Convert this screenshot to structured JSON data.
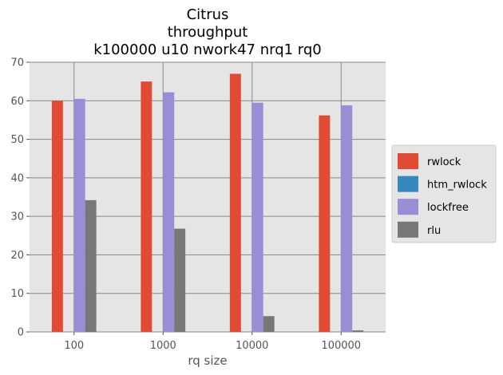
{
  "chart_data": {
    "type": "bar",
    "title_lines": [
      "Citrus",
      "throughput",
      "k100000 u10 nwork47 nrq1 rq0"
    ],
    "xlabel": "rq size",
    "ylabel": "",
    "categories": [
      "100",
      "1000",
      "10000",
      "100000"
    ],
    "ylim": [
      0,
      70
    ],
    "yticks": [
      "0",
      "10",
      "20",
      "30",
      "40",
      "50",
      "60",
      "70"
    ],
    "grid": true,
    "legend_position": "right",
    "series": [
      {
        "name": "rwlock",
        "color": "#E24A33",
        "values": [
          60,
          65,
          67,
          56.2
        ]
      },
      {
        "name": "htm_rwlock",
        "color": "#348ABD",
        "values": [
          0,
          0,
          0,
          0
        ]
      },
      {
        "name": "lockfree",
        "color": "#988ED5",
        "values": [
          60.5,
          62.2,
          59.5,
          58.8
        ]
      },
      {
        "name": "rlu",
        "color": "#777777",
        "values": [
          34.2,
          26.8,
          4.1,
          0.4
        ]
      }
    ]
  }
}
